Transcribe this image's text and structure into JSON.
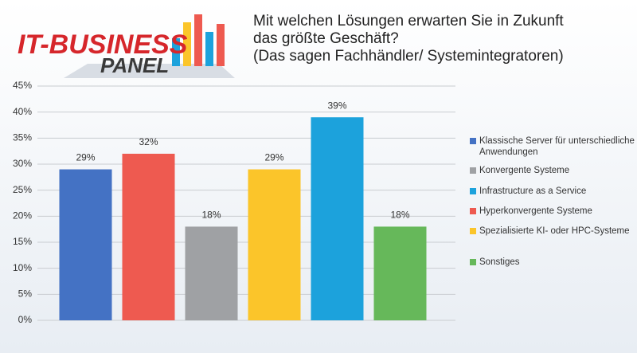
{
  "logo": {
    "title": "IT-BUSINESS",
    "subtitle": "PANEL"
  },
  "chart_data": {
    "type": "bar",
    "title": "Mit welchen Lösungen erwarten Sie in Zukunft das größte Geschäft?",
    "subtitle": "(Das sagen Fachhändler/ Systemintegratoren)",
    "ylim": [
      0,
      45
    ],
    "yticks": [
      {
        "value": 0,
        "label": "0%"
      },
      {
        "value": 5,
        "label": "5%"
      },
      {
        "value": 10,
        "label": "10%"
      },
      {
        "value": 15,
        "label": "15%"
      },
      {
        "value": 20,
        "label": "20%"
      },
      {
        "value": 25,
        "label": "25%"
      },
      {
        "value": 30,
        "label": "30%"
      },
      {
        "value": 35,
        "label": "35%"
      },
      {
        "value": 40,
        "label": "40%"
      },
      {
        "value": 45,
        "label": "45%"
      }
    ],
    "grid": true,
    "legend": "right",
    "series": [
      {
        "name": "Klassische Server für unterschiedliche Anwendungen",
        "color": "#4472c4",
        "values": [
          29
        ],
        "value_labels": [
          "29%"
        ]
      },
      {
        "name": "Konvergente Systeme",
        "color": "#9fa1a4",
        "values": [
          18
        ],
        "value_labels": [
          "18%"
        ]
      },
      {
        "name": "Infrastructure as a Service",
        "color": "#1ca2dc",
        "values": [
          39
        ],
        "value_labels": [
          "39%"
        ]
      },
      {
        "name": "Hyperkonvergente Systeme",
        "color": "#ee5a50",
        "values": [
          32
        ],
        "value_labels": [
          "32%"
        ]
      },
      {
        "name": "Spezialisierte KI- oder HPC-Systeme",
        "color": "#fbc52a",
        "values": [
          29
        ],
        "value_labels": [
          "29%"
        ]
      },
      {
        "name": "Sonstiges",
        "color": "#66b85a",
        "values": [
          18
        ],
        "value_labels": [
          "18%"
        ]
      }
    ]
  }
}
